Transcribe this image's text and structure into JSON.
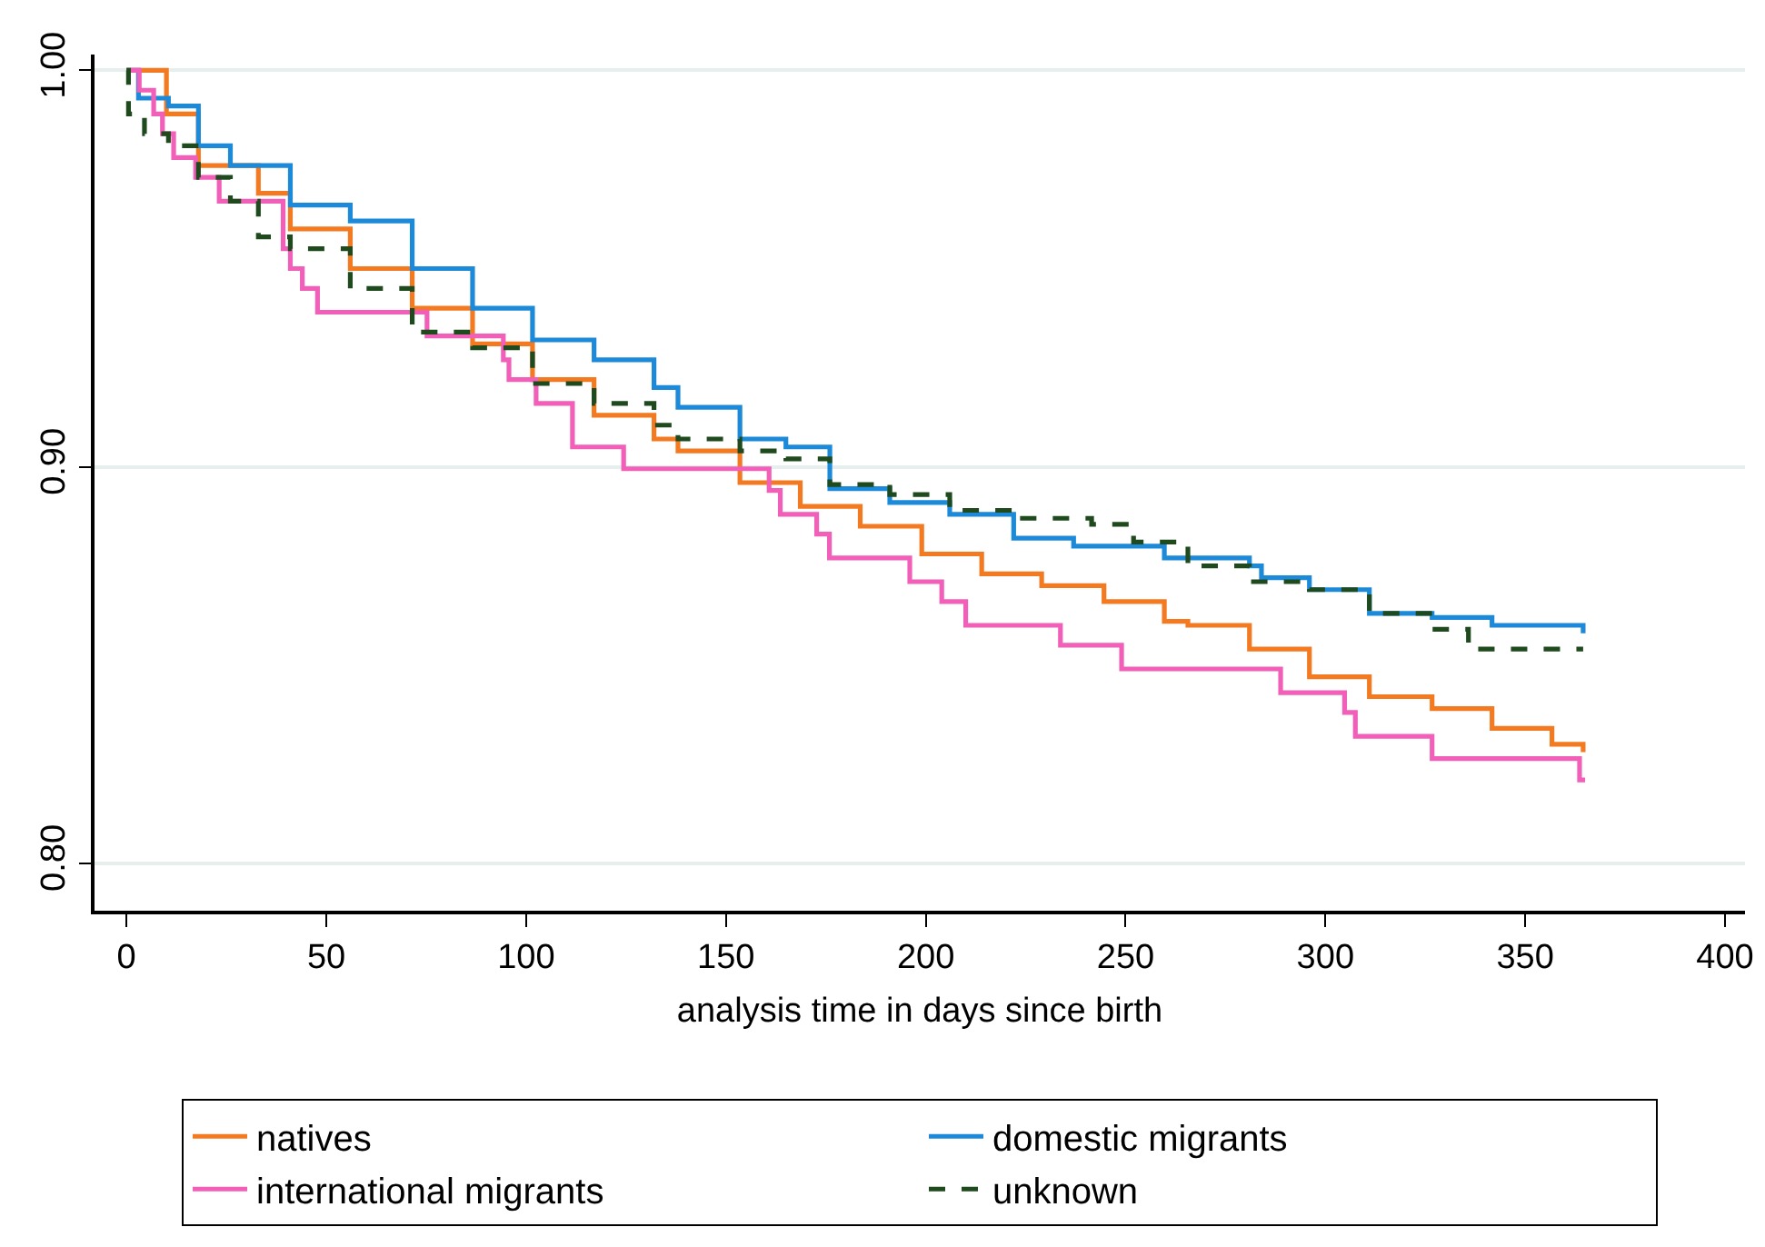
{
  "chart_data": {
    "type": "step",
    "xlabel": "analysis time in days since birth",
    "xlim": [
      -8,
      405
    ],
    "xticks": [
      0,
      50,
      100,
      150,
      200,
      250,
      300,
      350,
      400
    ],
    "ylim": [
      0.788,
      1.004
    ],
    "yticks": [
      {
        "value": 0.8,
        "label": "0.80"
      },
      {
        "value": 0.9,
        "label": "0.90"
      },
      {
        "value": 1.0,
        "label": "1.00"
      }
    ],
    "grid": "y",
    "legend": "bottom",
    "line_style": "solid",
    "marker": "none",
    "series": [
      {
        "name": "natives",
        "color": "#f47a22",
        "x": [
          0,
          10,
          18,
          33,
          41,
          56,
          71.5,
          86.6,
          101.6,
          117,
          132,
          138,
          153.5,
          168.6,
          183.6,
          199,
          214,
          229,
          244.6,
          259.7,
          265.6,
          281,
          296,
          311,
          326.7,
          341.7,
          356.7,
          364.5
        ],
        "values": [
          1.0,
          0.989,
          0.976,
          0.969,
          0.96,
          0.95,
          0.94,
          0.931,
          0.922,
          0.913,
          0.907,
          0.904,
          0.896,
          0.89,
          0.885,
          0.878,
          0.873,
          0.87,
          0.866,
          0.861,
          0.86,
          0.854,
          0.847,
          0.842,
          0.839,
          0.834,
          0.83,
          0.828
        ]
      },
      {
        "name": "domestic migrants",
        "color": "#1c8ad8",
        "x": [
          0,
          3,
          10.5,
          18,
          26,
          41,
          56,
          71.5,
          86.6,
          101.6,
          117,
          132,
          138,
          153.5,
          165,
          176,
          191,
          206,
          222,
          237,
          259.7,
          281,
          284,
          296,
          311,
          326.7,
          341.7,
          364.5
        ],
        "values": [
          1.0,
          0.993,
          0.991,
          0.981,
          0.976,
          0.966,
          0.962,
          0.95,
          0.94,
          0.932,
          0.927,
          0.92,
          0.915,
          0.907,
          0.905,
          0.8945,
          0.891,
          0.888,
          0.882,
          0.88,
          0.877,
          0.875,
          0.872,
          0.869,
          0.863,
          0.862,
          0.86,
          0.858
        ]
      },
      {
        "name": "international migrants",
        "color": "#f25fb8",
        "x": [
          0,
          3.2,
          6.8,
          9,
          11.8,
          17.3,
          23.2,
          39.2,
          41,
          44,
          47.8,
          75.2,
          94.3,
          95.7,
          102.5,
          111.6,
          124.4,
          160.8,
          163.6,
          172.7,
          175.9,
          196,
          204,
          210,
          233.7,
          249,
          288.8,
          304.8,
          307.5,
          326.7,
          363.6,
          365
        ],
        "values": [
          1.0,
          0.995,
          0.989,
          0.984,
          0.978,
          0.973,
          0.967,
          0.955,
          0.95,
          0.945,
          0.939,
          0.933,
          0.927,
          0.922,
          0.916,
          0.905,
          0.8995,
          0.894,
          0.888,
          0.883,
          0.877,
          0.871,
          0.866,
          0.86,
          0.855,
          0.849,
          0.843,
          0.838,
          0.832,
          0.8264,
          0.821,
          0.821
        ]
      },
      {
        "name": "unknown",
        "color": "#1e4a1e",
        "line_style": "dashed",
        "x": [
          0,
          0.5,
          4.5,
          10.5,
          18,
          26,
          33,
          41,
          56,
          71.5,
          86.6,
          101.6,
          117,
          132,
          138,
          153.5,
          165,
          176,
          191,
          206,
          222,
          241.5,
          252,
          265.6,
          281,
          296,
          311,
          326.7,
          335.8,
          364.5
        ],
        "values": [
          1.0,
          0.989,
          0.984,
          0.981,
          0.973,
          0.967,
          0.958,
          0.955,
          0.945,
          0.934,
          0.93,
          0.921,
          0.916,
          0.9105,
          0.907,
          0.904,
          0.902,
          0.8955,
          0.893,
          0.889,
          0.887,
          0.8855,
          0.881,
          0.875,
          0.871,
          0.869,
          0.863,
          0.859,
          0.854,
          0.854
        ]
      }
    ]
  }
}
